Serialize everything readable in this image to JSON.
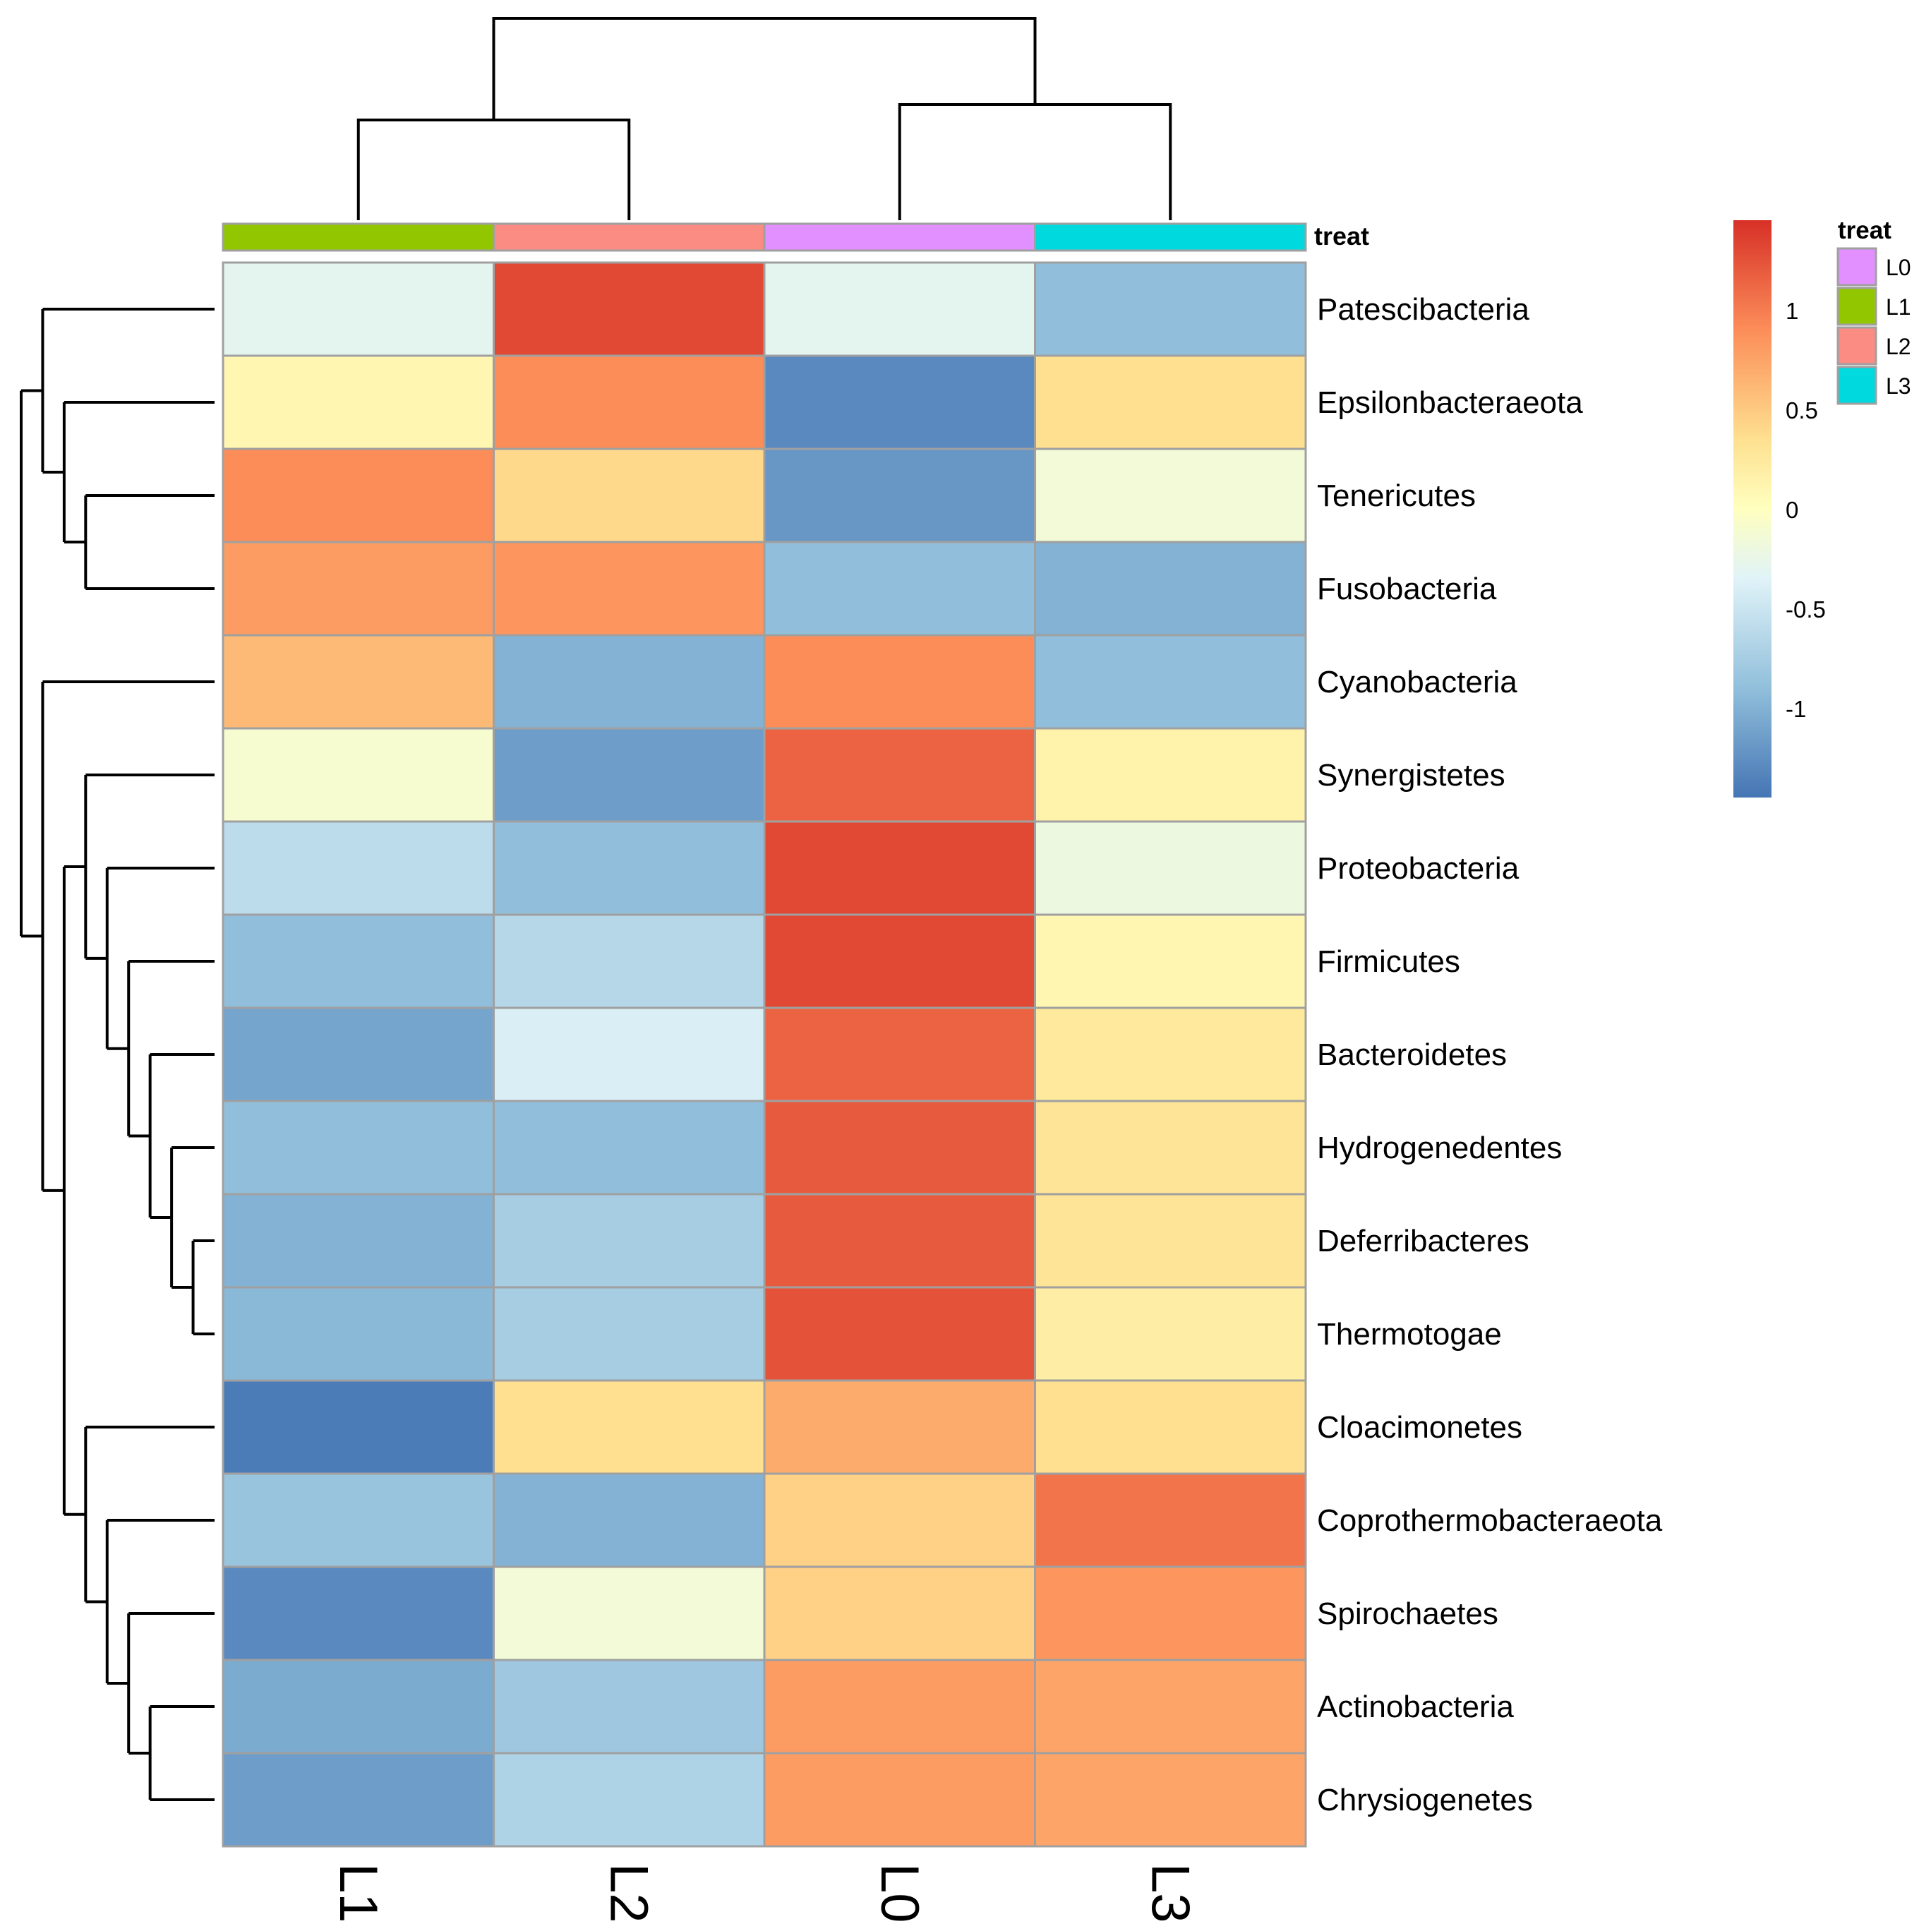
{
  "chart_data": {
    "type": "heatmap",
    "columns": [
      "L1",
      "L2",
      "L0",
      "L3"
    ],
    "rows": [
      "Patescibacteria",
      "Epsilonbacteraeota",
      "Tenericutes",
      "Fusobacteria",
      "Cyanobacteria",
      "Synergistetes",
      "Proteobacteria",
      "Firmicutes",
      "Bacteroidetes",
      "Hydrogenedentes",
      "Deferribacteres",
      "Thermotogae",
      "Cloacimonetes",
      "Coprothermobacteraeota",
      "Spirochaetes",
      "Actinobacteria",
      "Chrysiogenetes"
    ],
    "values": [
      [
        -0.3,
        1.3,
        -0.3,
        -0.9
      ],
      [
        0.1,
        0.9,
        -1.3,
        0.35
      ],
      [
        0.9,
        0.4,
        -1.2,
        -0.15
      ],
      [
        0.8,
        0.85,
        -0.9,
        -1.0
      ],
      [
        0.6,
        -1.0,
        0.9,
        -0.9
      ],
      [
        -0.1,
        -1.15,
        1.15,
        0.15
      ],
      [
        -0.6,
        -0.9,
        1.3,
        -0.2
      ],
      [
        -0.9,
        -0.65,
        1.3,
        0.1
      ],
      [
        -1.1,
        -0.4,
        1.15,
        0.25
      ],
      [
        -0.9,
        -0.9,
        1.2,
        0.3
      ],
      [
        -1.0,
        -0.75,
        1.2,
        0.3
      ],
      [
        -0.95,
        -0.75,
        1.25,
        0.2
      ],
      [
        -1.4,
        0.35,
        0.7,
        0.35
      ],
      [
        -0.85,
        -1.0,
        0.45,
        1.05
      ],
      [
        -1.3,
        -0.15,
        0.45,
        0.85
      ],
      [
        -1.05,
        -0.8,
        0.8,
        0.75
      ],
      [
        -1.15,
        -0.7,
        0.8,
        0.75
      ]
    ],
    "annotation": {
      "title": "treat",
      "column_groups": [
        "L1",
        "L2",
        "L0",
        "L3"
      ],
      "legend": [
        {
          "label": "L0",
          "color": "#E290FF"
        },
        {
          "label": "L1",
          "color": "#92C700"
        },
        {
          "label": "L2",
          "color": "#FA8C84"
        },
        {
          "label": "L3",
          "color": "#00D9DE"
        }
      ]
    },
    "color_scale": {
      "range": [
        -1.45,
        1.45
      ],
      "ticks": [
        1,
        0.5,
        0,
        -0.5,
        -1
      ],
      "tick_labels": [
        "1",
        "0.5",
        "0",
        "-0.5",
        "-1"
      ],
      "stops": [
        {
          "value": -1.45,
          "color": "#4575B4"
        },
        {
          "value": -0.9,
          "color": "#91BFDB"
        },
        {
          "value": -0.35,
          "color": "#E0F3F8"
        },
        {
          "value": 0,
          "color": "#FFFFBF"
        },
        {
          "value": 0.35,
          "color": "#FEE090"
        },
        {
          "value": 0.9,
          "color": "#FC8D59"
        },
        {
          "value": 1.45,
          "color": "#D73027"
        }
      ]
    },
    "column_dendrogram": [
      [
        0,
        1
      ],
      [
        2,
        3
      ],
      [
        [
          0,
          1
        ],
        [
          2,
          3
        ]
      ]
    ],
    "row_dendrogram": "((Patescibacteria,(Epsilonbacteraeota,(Tenericutes,Fusobacteria))),(Cyanobacteria,((Synergistetes,(Proteobacteria,(Firmicutes,(Bacteroidetes,(Hydrogenedentes,(Deferribacteres,Thermotogae)))))),(Cloacimonetes,(Coprothermobacteraeota,(Spirochaetes,(Actinobacteria,Chrysiogenetes))))))))"
  }
}
